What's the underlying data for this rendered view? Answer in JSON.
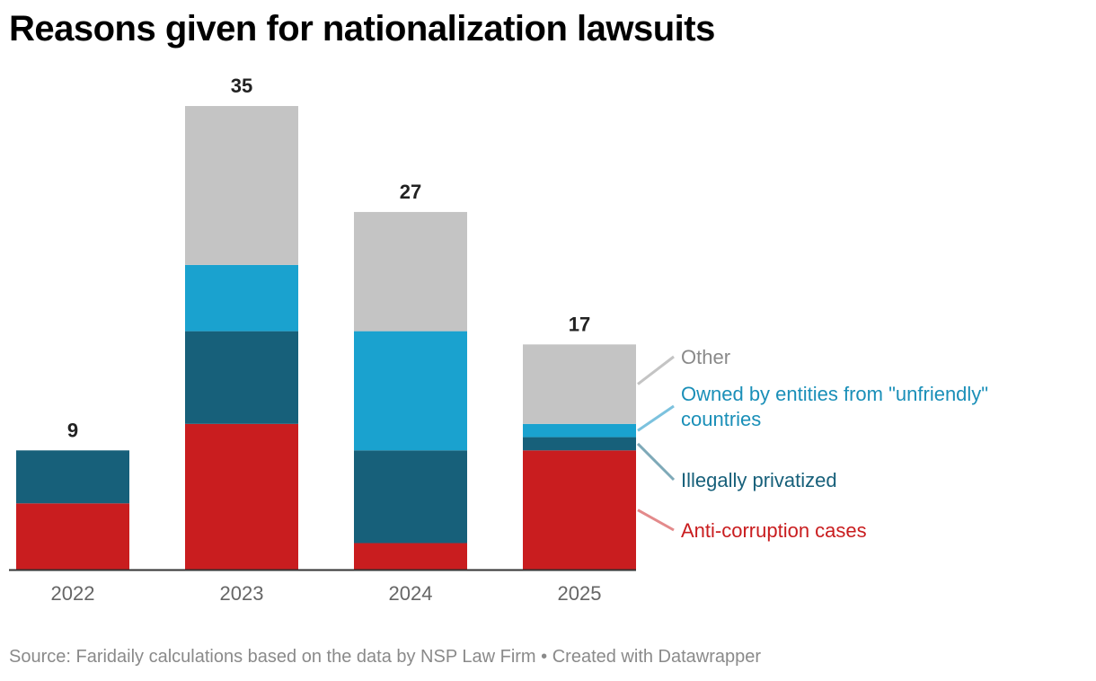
{
  "title": "Reasons given for nationalization lawsuits",
  "footer": {
    "source": "Source: Faridaily calculations based on the data by NSP Law Firm",
    "separator": " • ",
    "credit": "Created with Datawrapper"
  },
  "chart_data": {
    "type": "bar",
    "stacked": true,
    "title": "Reasons given for nationalization lawsuits",
    "xlabel": "",
    "ylabel": "",
    "categories": [
      "2022",
      "2023",
      "2024",
      "2025"
    ],
    "totals": [
      9,
      35,
      27,
      17
    ],
    "ylim": [
      0,
      35
    ],
    "series": [
      {
        "name": "Anti-corruption cases",
        "color": "#c91d1f",
        "values": [
          5,
          11,
          2,
          9
        ]
      },
      {
        "name": "Illegally privatized",
        "color": "#17607a",
        "values": [
          4,
          7,
          7,
          1
        ]
      },
      {
        "name": "Owned by entities from \"unfriendly\" countries",
        "color": "#1aa2cf",
        "values": [
          0,
          5,
          9,
          1
        ]
      },
      {
        "name": "Other",
        "color": "#c4c4c4",
        "values": [
          0,
          12,
          9,
          6
        ]
      }
    ],
    "legend": {
      "placement": "right-of-last-bar",
      "labels": [
        {
          "series": "Other",
          "lines": [
            "Other"
          ],
          "color": "#8a8a8a",
          "line_color": "#c4c4c4"
        },
        {
          "series": "Owned by entities from \"unfriendly\" countries",
          "lines": [
            "Owned by entities from \"unfriendly\"",
            "countries"
          ],
          "color": "#1a8fb8",
          "line_color": "#7cc2de"
        },
        {
          "series": "Illegally privatized",
          "lines": [
            "Illegally privatized"
          ],
          "color": "#17607a",
          "line_color": "#7ea9b8"
        },
        {
          "series": "Anti-corruption cases",
          "lines": [
            "Anti-corruption cases"
          ],
          "color": "#c91d1f",
          "line_color": "#e38a8b"
        }
      ]
    },
    "colors": {
      "axis": "#333333",
      "tick_label": "#666666",
      "total_label": "#222222"
    }
  }
}
